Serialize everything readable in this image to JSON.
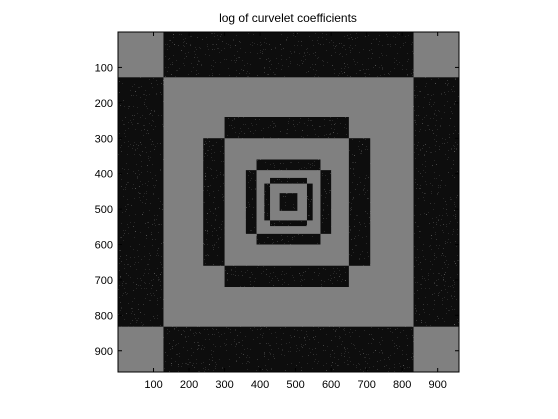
{
  "chart_data": {
    "type": "heatmap",
    "title": "log of curvelet coefficients",
    "xlabel": "",
    "ylabel": "",
    "xlim": [
      0,
      960
    ],
    "ylim": [
      960,
      0
    ],
    "x_ticks": [
      100,
      200,
      300,
      400,
      500,
      600,
      700,
      800,
      900
    ],
    "y_ticks": [
      100,
      200,
      300,
      400,
      500,
      600,
      700,
      800,
      900
    ],
    "x_tick_labels": [
      "100",
      "200",
      "300",
      "400",
      "500",
      "600",
      "700",
      "800",
      "900"
    ],
    "y_tick_labels": [
      "100",
      "200",
      "300",
      "400",
      "500",
      "600",
      "700",
      "800",
      "900"
    ],
    "colors": {
      "background_gray": "#808080",
      "coefficient_dark": "#0d0d0d",
      "frame": "#000000"
    },
    "regions": [
      {
        "name": "finest-scale-top",
        "x": [
          128,
          832
        ],
        "y": [
          0,
          128
        ]
      },
      {
        "name": "finest-scale-bottom",
        "x": [
          128,
          832
        ],
        "y": [
          832,
          960
        ]
      },
      {
        "name": "finest-scale-left",
        "x": [
          0,
          128
        ],
        "y": [
          128,
          832
        ]
      },
      {
        "name": "finest-scale-right",
        "x": [
          832,
          960
        ],
        "y": [
          128,
          832
        ]
      },
      {
        "name": "scale-3-top",
        "x": [
          300,
          650
        ],
        "y": [
          240,
          300
        ]
      },
      {
        "name": "scale-3-bottom",
        "x": [
          300,
          650
        ],
        "y": [
          660,
          720
        ]
      },
      {
        "name": "scale-3-left",
        "x": [
          240,
          300
        ],
        "y": [
          300,
          660
        ]
      },
      {
        "name": "scale-3-right",
        "x": [
          650,
          710
        ],
        "y": [
          300,
          660
        ]
      },
      {
        "name": "scale-2-top",
        "x": [
          390,
          570
        ],
        "y": [
          360,
          390
        ]
      },
      {
        "name": "scale-2-bottom",
        "x": [
          390,
          570
        ],
        "y": [
          570,
          600
        ]
      },
      {
        "name": "scale-2-left",
        "x": [
          360,
          390
        ],
        "y": [
          390,
          570
        ]
      },
      {
        "name": "scale-2-right",
        "x": [
          570,
          600
        ],
        "y": [
          390,
          570
        ]
      },
      {
        "name": "scale-1-top",
        "x": [
          428,
          532
        ],
        "y": [
          412,
          428
        ]
      },
      {
        "name": "scale-1-bottom",
        "x": [
          428,
          532
        ],
        "y": [
          532,
          548
        ]
      },
      {
        "name": "scale-1-left",
        "x": [
          412,
          428
        ],
        "y": [
          428,
          532
        ]
      },
      {
        "name": "scale-1-right",
        "x": [
          532,
          548
        ],
        "y": [
          428,
          532
        ]
      },
      {
        "name": "coarse-scale-center",
        "x": [
          455,
          505
        ],
        "y": [
          455,
          505
        ]
      }
    ]
  }
}
